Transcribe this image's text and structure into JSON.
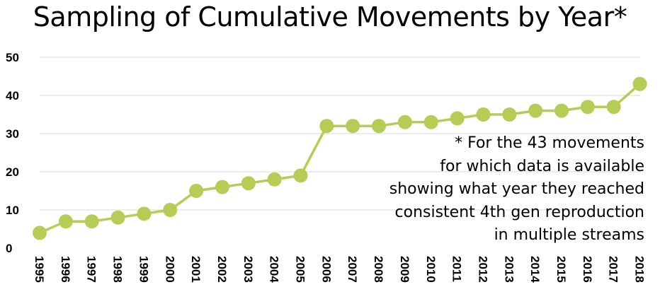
{
  "chart_data": {
    "type": "line",
    "title": "Sampling of Cumulative Movements by Year*",
    "xlabel": "",
    "ylabel": "",
    "x": [
      "1995",
      "1996",
      "1997",
      "1998",
      "1999",
      "2000",
      "2001",
      "2002",
      "2003",
      "2004",
      "2005",
      "2006",
      "2007",
      "2008",
      "2009",
      "2010",
      "2011",
      "2012",
      "2013",
      "2014",
      "2015",
      "2016",
      "2017",
      "2018"
    ],
    "series": [
      {
        "values": [
          4,
          7,
          7,
          8,
          9,
          10,
          15,
          16,
          17,
          18,
          19,
          32,
          32,
          32,
          33,
          33,
          34,
          35,
          35,
          36,
          36,
          37,
          37,
          43
        ]
      }
    ],
    "ylim": [
      0,
      50
    ],
    "y_ticks": [
      "0",
      "10",
      "20",
      "30",
      "40",
      "50"
    ],
    "grid": true,
    "legend": "none",
    "annotation": [
      "* For the 43 movements",
      "for which data is available",
      "showing what year they reached",
      "consistent 4th gen reproduction",
      "in multiple streams"
    ]
  },
  "colors": {
    "series": "#b5cc55",
    "grid": "#d9d9d9",
    "text": "#000000"
  }
}
